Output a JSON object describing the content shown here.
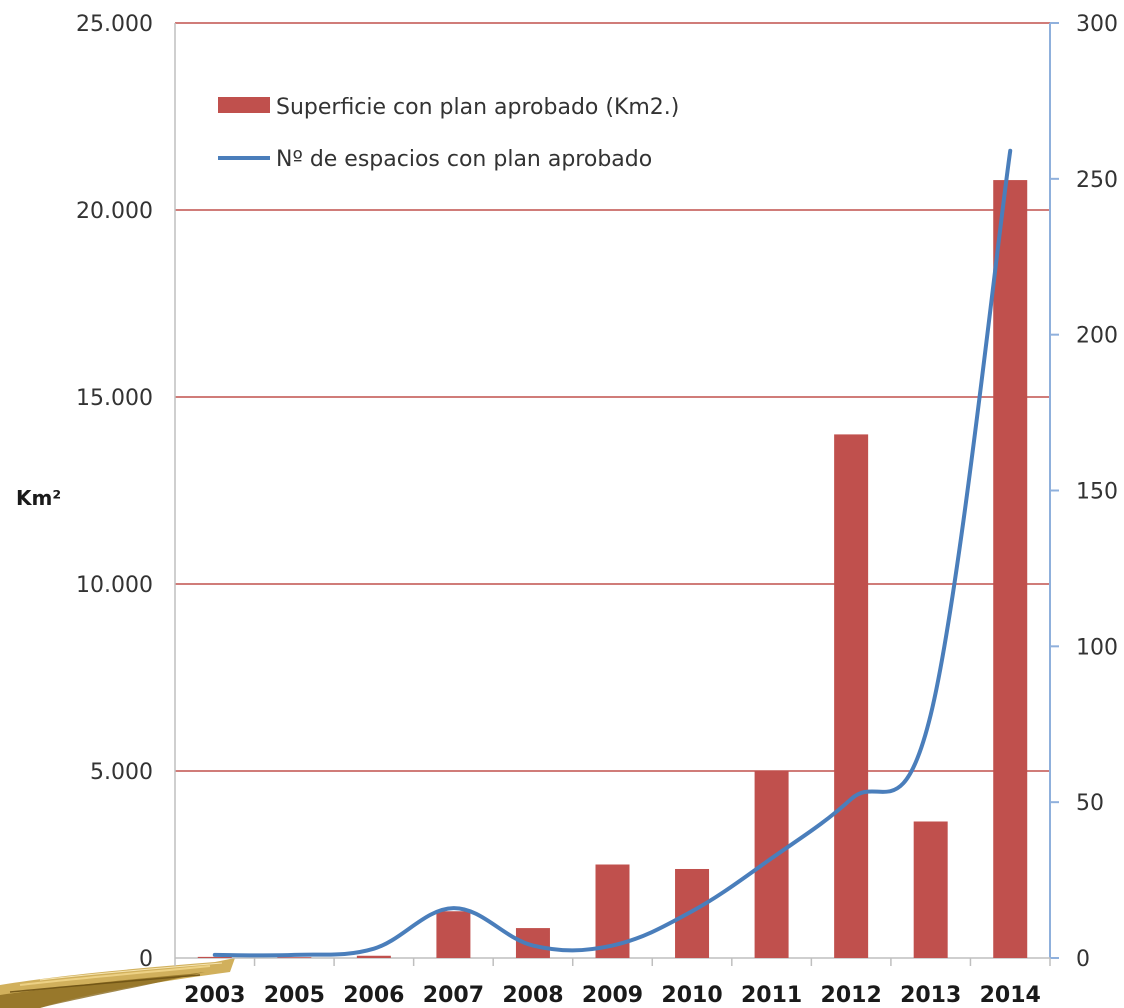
{
  "chart_data": {
    "type": "bar",
    "categories": [
      "2003",
      "2005",
      "2006",
      "2007",
      "2008",
      "2009",
      "2010",
      "2011",
      "2012",
      "2013",
      "2014"
    ],
    "series": [
      {
        "name": "Superficie con plan aprobado (Km2.)",
        "type": "bar",
        "axis": "left",
        "color": "#c0504d",
        "values": [
          30,
          20,
          60,
          1250,
          800,
          2500,
          2380,
          5000,
          14000,
          3650,
          20800
        ]
      },
      {
        "name": "Nº de espacios con plan aprobado",
        "type": "line",
        "axis": "right",
        "color": "#4a7ebb",
        "values": [
          1,
          1,
          3,
          16,
          4,
          4,
          15,
          32,
          51,
          78,
          259
        ]
      }
    ],
    "ylabel": "Km²",
    "ylim": [
      0,
      25000
    ],
    "y_ticks": [
      "0",
      "5.000",
      "10.000",
      "15.000",
      "20.000",
      "25.000"
    ],
    "y2lim": [
      0,
      300
    ],
    "y2_ticks": [
      "0",
      "50",
      "100",
      "150",
      "200",
      "250",
      "300"
    ],
    "grid": true,
    "legend_position": "top-left"
  }
}
